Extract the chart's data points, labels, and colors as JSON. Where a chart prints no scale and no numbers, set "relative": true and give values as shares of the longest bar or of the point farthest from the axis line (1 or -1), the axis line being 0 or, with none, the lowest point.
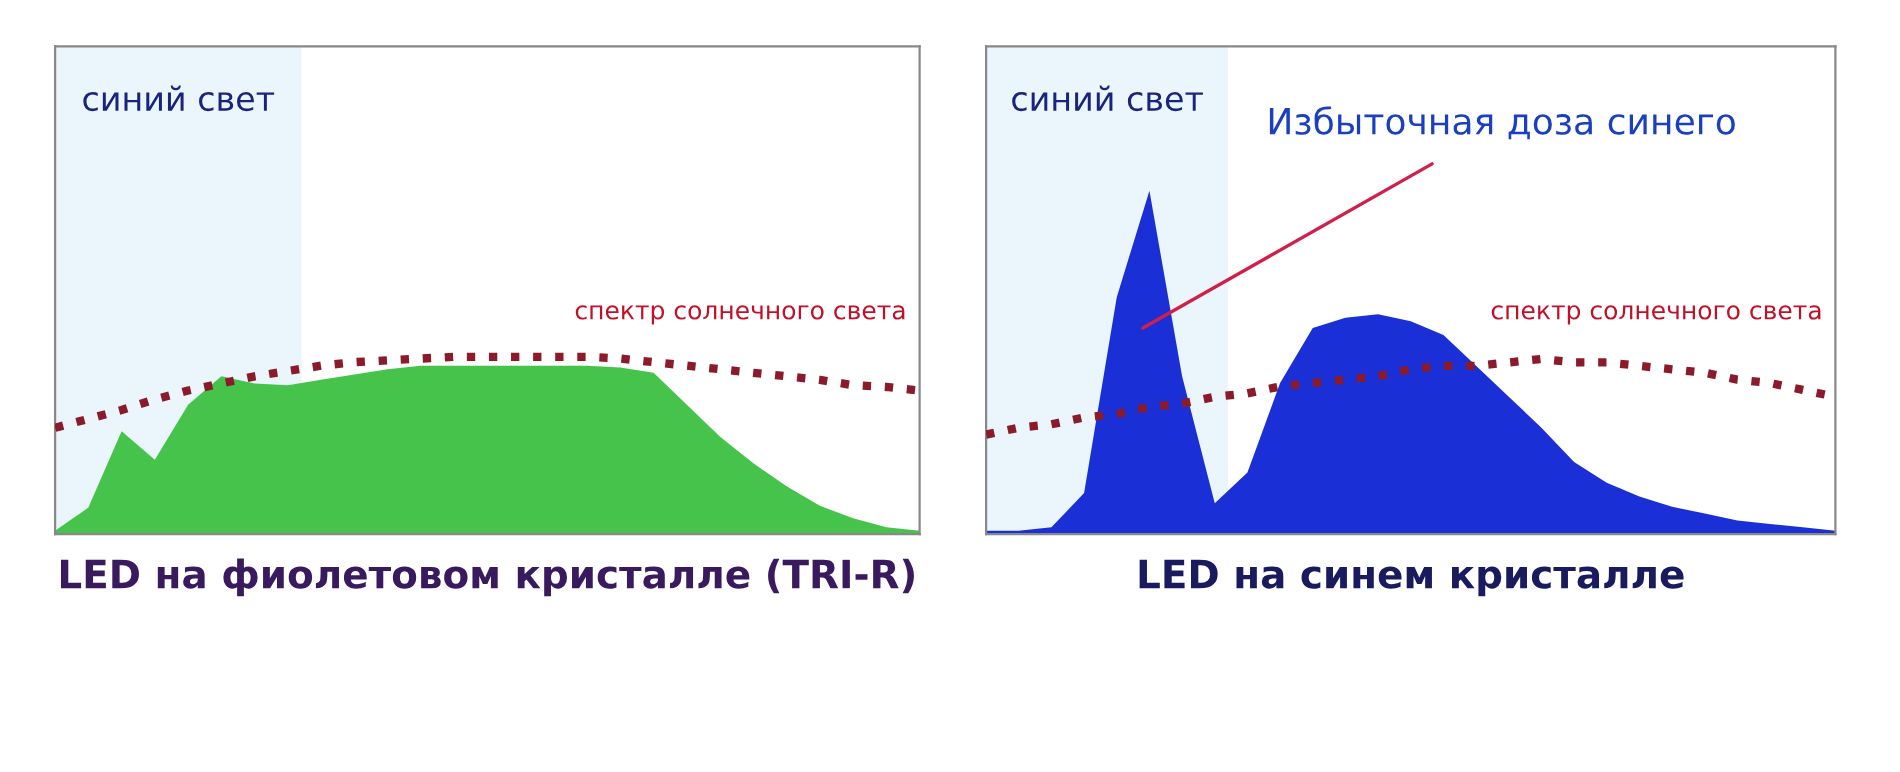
{
  "chart_data": [
    {
      "type": "area",
      "relative": true,
      "title": "LED на фиолетовом кристалле (TRI-R)",
      "tick_labels": false,
      "categories": [
        null,
        null,
        null,
        null,
        null,
        null,
        null,
        null,
        null,
        null,
        null,
        null,
        null,
        null,
        null,
        null,
        null,
        null,
        null,
        null,
        null,
        null,
        null,
        null,
        null,
        null,
        null
      ],
      "series": [
        {
          "color": "#46c34a",
          "values": [
            0.02,
            0.15,
            0.58,
            0.42,
            0.73,
            0.89,
            0.85,
            0.84,
            0.87,
            0.9,
            0.93,
            0.95,
            0.95,
            0.95,
            0.95,
            0.95,
            0.95,
            0.94,
            0.91,
            0.73,
            0.55,
            0.4,
            0.27,
            0.16,
            0.09,
            0.04,
            0.02
          ]
        },
        {
          "type": "line",
          "line_style": "dotted",
          "color": "#8b1a2a",
          "values": [
            0.6,
            0.65,
            0.7,
            0.76,
            0.81,
            0.85,
            0.89,
            0.92,
            0.95,
            0.97,
            0.98,
            0.99,
            1.0,
            1.0,
            1.0,
            1.0,
            1.0,
            0.99,
            0.97,
            0.95,
            0.93,
            0.91,
            0.89,
            0.87,
            0.84,
            0.83,
            0.81
          ]
        }
      ],
      "annotations": [
        "синий свет",
        "спектр солнечного света"
      ]
    },
    {
      "type": "area",
      "relative": true,
      "title": "LED на синем кристалле",
      "tick_labels": false,
      "categories": [
        null,
        null,
        null,
        null,
        null,
        null,
        null,
        null,
        null,
        null,
        null,
        null,
        null,
        null,
        null,
        null,
        null,
        null,
        null,
        null,
        null,
        null,
        null,
        null,
        null,
        null,
        null
      ],
      "series": [
        {
          "color": "#1a2fd6",
          "values": [
            0.01,
            0.01,
            0.02,
            0.12,
            0.69,
            1.0,
            0.46,
            0.09,
            0.18,
            0.44,
            0.6,
            0.63,
            0.64,
            0.62,
            0.58,
            0.49,
            0.4,
            0.31,
            0.21,
            0.15,
            0.11,
            0.08,
            0.06,
            0.04,
            0.03,
            0.02,
            0.01
          ]
        },
        {
          "type": "line",
          "line_style": "dotted",
          "color": "#8b1a2a",
          "values": [
            0.29,
            0.31,
            0.32,
            0.34,
            0.35,
            0.37,
            0.38,
            0.4,
            0.41,
            0.43,
            0.44,
            0.45,
            0.46,
            0.48,
            0.49,
            0.49,
            0.5,
            0.51,
            0.5,
            0.5,
            0.49,
            0.48,
            0.47,
            0.45,
            0.44,
            0.42,
            0.4
          ]
        }
      ],
      "annotations": [
        "синий свет",
        "спектр солнечного света",
        "Избыточная доза синего"
      ]
    }
  ]
}
